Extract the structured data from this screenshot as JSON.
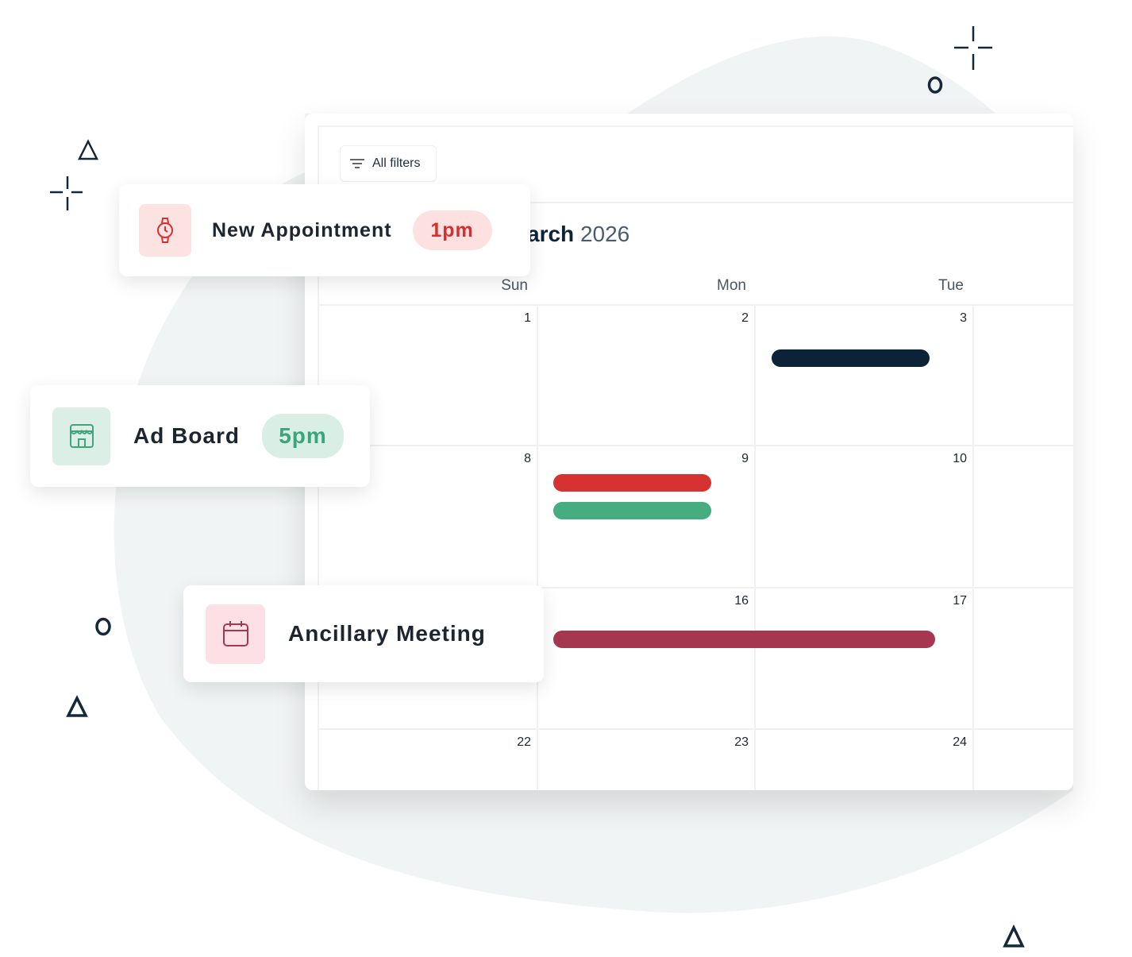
{
  "calendar": {
    "filter_button": "All filters",
    "title": {
      "month": "arch",
      "year": "2026"
    },
    "weekdays": [
      "Sun",
      "Mon",
      "Tue"
    ],
    "weeks": [
      [
        1,
        2,
        3
      ],
      [
        8,
        9,
        10
      ],
      [
        null,
        16,
        17
      ],
      [
        22,
        23,
        24
      ]
    ]
  },
  "cards": [
    {
      "title": "New Appointment",
      "time": "1pm"
    },
    {
      "title": "Ad Board",
      "time": "5pm"
    },
    {
      "title": "Ancillary Meeting"
    }
  ]
}
